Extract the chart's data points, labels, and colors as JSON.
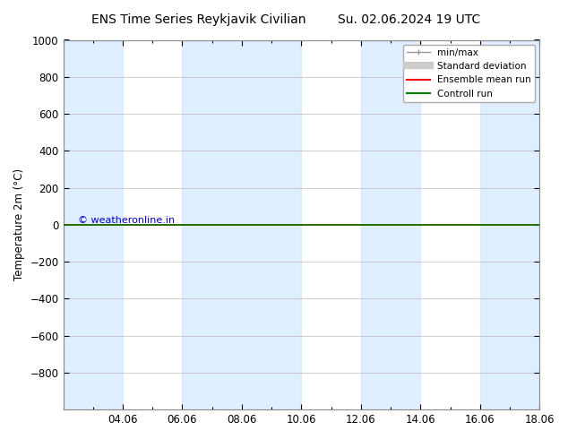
{
  "title": "ENS Time Series Reykjavik Civilian",
  "title_date": "Su. 02.06.2024 19 UTC",
  "ylabel": "Temperature 2m (°C)",
  "background_color": "#ffffff",
  "plot_bg_color": "#ffffff",
  "ylim": [
    -1000,
    1000
  ],
  "yticks": [
    -800,
    -600,
    -400,
    -200,
    0,
    200,
    400,
    600,
    800,
    1000
  ],
  "xtick_labels": [
    "04.06",
    "06.06",
    "08.06",
    "10.06",
    "12.06",
    "14.06",
    "16.06",
    "18.06"
  ],
  "xtick_positions": [
    2,
    4,
    6,
    8,
    10,
    12,
    14,
    16
  ],
  "xlim": [
    0,
    16
  ],
  "shaded_color": "#cce5ff",
  "shaded_alpha": 0.6,
  "ensemble_mean_color": "#ff0000",
  "control_run_color": "#008000",
  "watermark": "© weatheronline.in",
  "watermark_color": "#0000cc",
  "legend_items": [
    {
      "label": "min/max",
      "color": "#aaaaaa"
    },
    {
      "label": "Standard deviation",
      "color": "#cccccc"
    },
    {
      "label": "Ensemble mean run",
      "color": "#ff0000"
    },
    {
      "label": "Controll run",
      "color": "#008000"
    }
  ],
  "grid_color": "#bbbbbb",
  "shaded_regions": [
    [
      0,
      2
    ],
    [
      4,
      8
    ],
    [
      10,
      12
    ],
    [
      14,
      16
    ]
  ]
}
